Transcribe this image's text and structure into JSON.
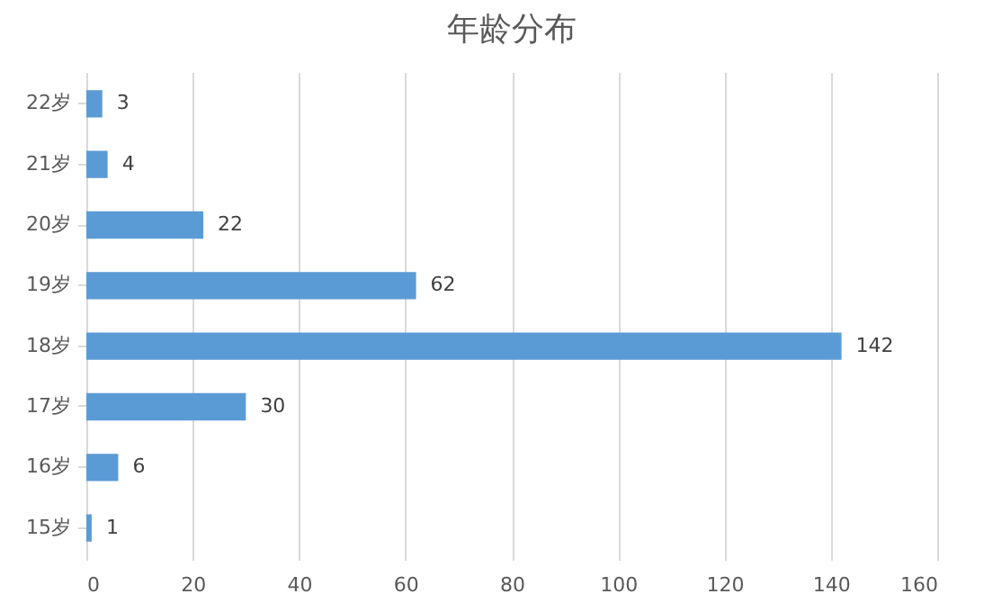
{
  "chart_data": {
    "type": "bar",
    "title": "年龄分布",
    "orientation": "horizontal",
    "categories": [
      "22岁",
      "21岁",
      "20岁",
      "19岁",
      "18岁",
      "17岁",
      "16岁",
      "15岁"
    ],
    "values": [
      3,
      4,
      22,
      62,
      142,
      30,
      6,
      1
    ],
    "color": "#5b9bd5",
    "xlim": [
      0,
      160
    ],
    "xticks": [
      0,
      20,
      40,
      60,
      80,
      100,
      120,
      140,
      160
    ],
    "grid": "x",
    "data_labels": true
  }
}
